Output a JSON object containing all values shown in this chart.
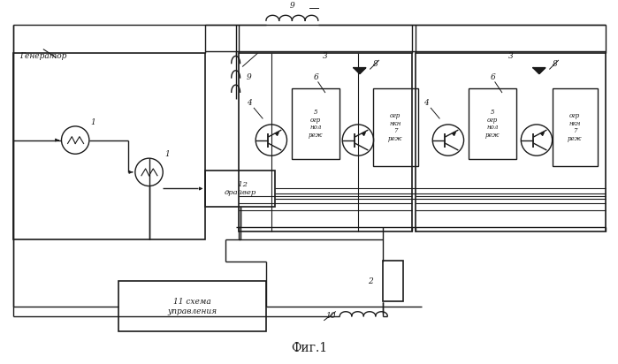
{
  "bg_color": "#ffffff",
  "line_color": "#1a1a1a",
  "title": "Фиг.1",
  "label_generator": "Генератор",
  "label_9a": "9",
  "label_9b": "9",
  "label_1a": "1",
  "label_1b": "1",
  "label_3a": "3",
  "label_3b": "3",
  "label_4a": "4",
  "label_4b": "4",
  "label_5a": "5\nогр\nнол\nреж",
  "label_5b": "5\nогр\nнол\nреж",
  "label_6a": "6",
  "label_6b": "6",
  "label_7a": "огр\nнкн\n7\nреж",
  "label_7b": "огр\nнкн\n7\nреж",
  "label_8a": "8",
  "label_8b": "8",
  "label_10": "10",
  "label_2": "2",
  "label_11": "11 схема\nуправления",
  "label_12": "12\nдрайвер"
}
